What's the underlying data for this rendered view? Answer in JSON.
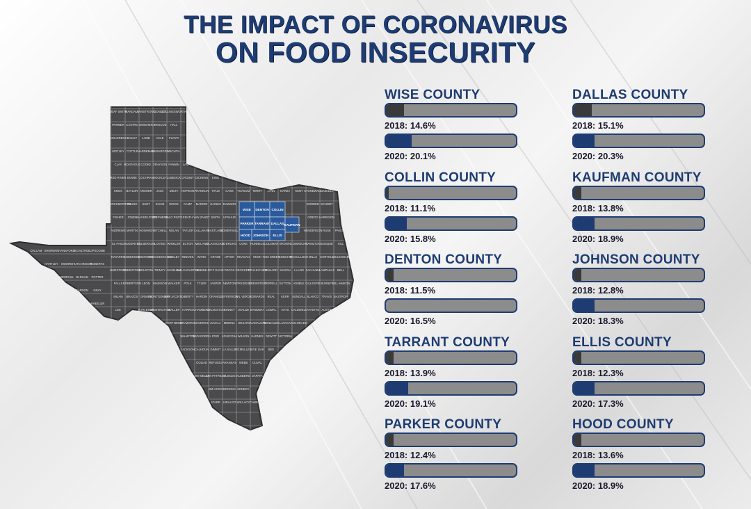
{
  "title": {
    "line1": "THE IMPACT OF CORONAVIRUS",
    "line2": "ON FOOD INSECURITY"
  },
  "colors": {
    "title": "#1e3c72",
    "bar_2018": "#3a3a3a",
    "bar_2020": "#1e3c72",
    "track": "#8c8c8c",
    "map_county": "#4a4a4c",
    "map_highlight": "#2b5a9c"
  },
  "chart_data": {
    "type": "bar",
    "categories": [
      "WISE COUNTY",
      "COLLIN COUNTY",
      "DENTON COUNTY",
      "TARRANT COUNTY",
      "PARKER COUNTY",
      "DALLAS COUNTY",
      "KAUFMAN COUNTY",
      "JOHNSON COUNTY",
      "ELLIS COUNTY",
      "HOOD COUNTY"
    ],
    "series": [
      {
        "name": "2018",
        "values": [
          14.6,
          11.1,
          11.5,
          13.9,
          12.4,
          15.1,
          13.8,
          12.8,
          12.3,
          13.6
        ]
      },
      {
        "name": "2020",
        "values": [
          20.1,
          15.8,
          16.5,
          19.1,
          17.6,
          20.3,
          18.9,
          18.3,
          17.3,
          18.9
        ]
      }
    ],
    "labels_2018": [
      "2018: 14.6%",
      "2018: 11.1%",
      "2018: 11.5%",
      "2018: 13.9%",
      "2018: 12.4%",
      "2018: 15.1%",
      "2018: 13.8%",
      "2018: 12.8%",
      "2018: 12.3%",
      "2018: 13.6%"
    ],
    "labels_2020": [
      "2020: 20.1%",
      "2020: 15.8%",
      "2020: 16.5%",
      "2020: 19.1%",
      "2020: 17.6%",
      "2020: 20.3%",
      "2020: 18.9%",
      "2020: 18.3%",
      "2020: 17.3%",
      "2020: 18.9%"
    ],
    "bar_fill_fractions_2018": [
      0.14,
      0.02,
      0.06,
      0.06,
      0.06,
      0.14,
      0.06,
      0.06,
      0.06,
      0.06
    ],
    "bar_fill_fractions_2020": [
      0.2,
      0.16,
      0.0,
      0.17,
      0.14,
      0.16,
      0.16,
      0.16,
      0.16,
      0.16
    ],
    "title": "THE IMPACT OF CORONAVIRUS ON FOOD INSECURITY",
    "xlabel": "",
    "ylabel": ""
  },
  "map": {
    "highlighted_counties": [
      "WISE",
      "DENTON",
      "COLLIN",
      "PARKER",
      "TARRANT",
      "DALLAS",
      "KAUFMAN",
      "HOOD",
      "JOHNSON",
      "ELLIS"
    ],
    "county_labels": [
      "DALLAM",
      "SHERMAN",
      "HANSFORD",
      "OCHILTREE",
      "LIPSCOMB",
      "HARTLEY",
      "MOORE",
      "HUTCHINSON",
      "ROBERTS",
      "HEMPHILL",
      "OLDHAM",
      "POTTER",
      "CARSON",
      "GRAY",
      "WHEELER",
      "DEAF SMITH",
      "RANDALL",
      "ARMSTRONG",
      "DONLEY",
      "COLLINGSWORTH",
      "PARMER",
      "CASTRO",
      "SWISHER",
      "BRISCOE",
      "HALL",
      "CHILDRESS",
      "BAILEY",
      "LAMB",
      "HALE",
      "FLOYD",
      "MOTLEY",
      "COTTLE",
      "HARDEMAN",
      "WILBARGER",
      "WICHITA",
      "CLAY",
      "MONTAGUE",
      "COOKE",
      "GRAYSON",
      "FANNIN",
      "LAMAR",
      "RED RIVER",
      "BOWIE",
      "COCHRAN",
      "HOCKLEY",
      "LUBBOCK",
      "CROSBY",
      "DICKENS",
      "KING",
      "KNOX",
      "BAYLOR",
      "ARCHER",
      "JACK",
      "DELTA",
      "HOPKINS",
      "FRANKLIN",
      "TITUS",
      "CASS",
      "YOAKUM",
      "TERRY",
      "LYNN",
      "GARZA",
      "KENT",
      "STONEWALL",
      "HASKELL",
      "THROCKMORTON",
      "YOUNG",
      "HUNT",
      "RAINS",
      "WOOD",
      "CAMP",
      "MARION",
      "GAINES",
      "DAWSON",
      "BORDEN",
      "SCURRY",
      "FISHER",
      "JONES",
      "SHACKELFORD",
      "STEPHENS",
      "PALO PINTO",
      "ERATH",
      "VAN ZANDT",
      "SMITH",
      "UPSHUR",
      "GREGG",
      "HARRISON",
      "ANDREWS",
      "MARTIN",
      "HOWARD",
      "MITCHELL",
      "NOLAN",
      "TAYLOR",
      "CALLAHAN",
      "EASTLAND",
      "SOMERVELL",
      "HENDERSON",
      "RUSK",
      "PANOLA",
      "EL PASO",
      "HUDSPETH",
      "CULBERSON",
      "LOVING",
      "WINKLER",
      "ECTOR",
      "MIDLAND",
      "GLASSCOCK",
      "STERLING",
      "COKE",
      "RUNNELS",
      "COLEMAN",
      "BROWN",
      "COMANCHE",
      "HAMILTON",
      "BOSQUE",
      "HILL",
      "NAVARRO",
      "ANDERSON",
      "CHEROKEE",
      "NACOGDOCHES",
      "SHELBY",
      "REEVES",
      "WARD",
      "CRANE",
      "UPTON",
      "REAGAN",
      "IRION",
      "TOM GREEN",
      "CONCHO",
      "MCCULLOCH",
      "MILLS",
      "CORYELL",
      "MCLENNAN",
      "LIMESTONE",
      "FREESTONE",
      "HOUSTON",
      "TRINITY",
      "ANGELINA",
      "SAN AUGUSTINE",
      "SABINE",
      "JEFF DAVIS",
      "PECOS",
      "CROCKETT",
      "SCHLEICHER",
      "MENARD",
      "MASON",
      "LLANO",
      "SAN SABA",
      "LAMPASAS",
      "BELL",
      "FALLS",
      "ROBERTSON",
      "LEON",
      "MADISON",
      "WALKER",
      "POLK",
      "TYLER",
      "JASPER",
      "NEWTON",
      "PRESIDIO",
      "BREWSTER",
      "TERRELL",
      "SUTTON",
      "KIMBLE",
      "GILLESPIE",
      "BURNET",
      "WILLIAMSON",
      "MILAM",
      "BRAZOS",
      "GRIMES",
      "MONTGOMERY",
      "SAN JACINTO",
      "LIBERTY",
      "HARDIN",
      "ORANGE",
      "JEFFERSON",
      "VAL VERDE",
      "EDWARDS",
      "REAL",
      "KERR",
      "KENDALL",
      "BLANCO",
      "TRAVIS",
      "BASTROP",
      "LEE",
      "BURLESON",
      "WASHINGTON",
      "WALLER",
      "HARRIS",
      "CHAMBERS",
      "GALVESTON",
      "KINNEY",
      "UVALDE",
      "BANDERA",
      "COMAL",
      "HAYS",
      "CALDWELL",
      "FAYETTE",
      "AUSTIN",
      "FORT BEND",
      "BRAZORIA",
      "MAVERICK",
      "ZAVALA",
      "MEDINA",
      "BEXAR",
      "GUADALUPE",
      "GONZALES",
      "LAVACA",
      "COLORADO",
      "WHARTON",
      "MATAGORDA",
      "FRIO",
      "ATASCOSA",
      "WILSON",
      "KARNES",
      "DEWITT",
      "VICTORIA",
      "JACKSON",
      "CALHOUN",
      "DIMMIT",
      "LA SALLE",
      "MCMULLEN",
      "LIVE OAK",
      "BEE",
      "GOLIAD",
      "REFUGIO",
      "ARANSAS",
      "WEBB",
      "DUVAL",
      "JIM WELLS",
      "SAN PATRICIO",
      "NUECES",
      "KLEBERG",
      "ZAPATA",
      "JIM HOGG",
      "BROOKS",
      "KENEDY",
      "STARR",
      "HIDALGO",
      "WILLACY",
      "CAMERON"
    ]
  }
}
